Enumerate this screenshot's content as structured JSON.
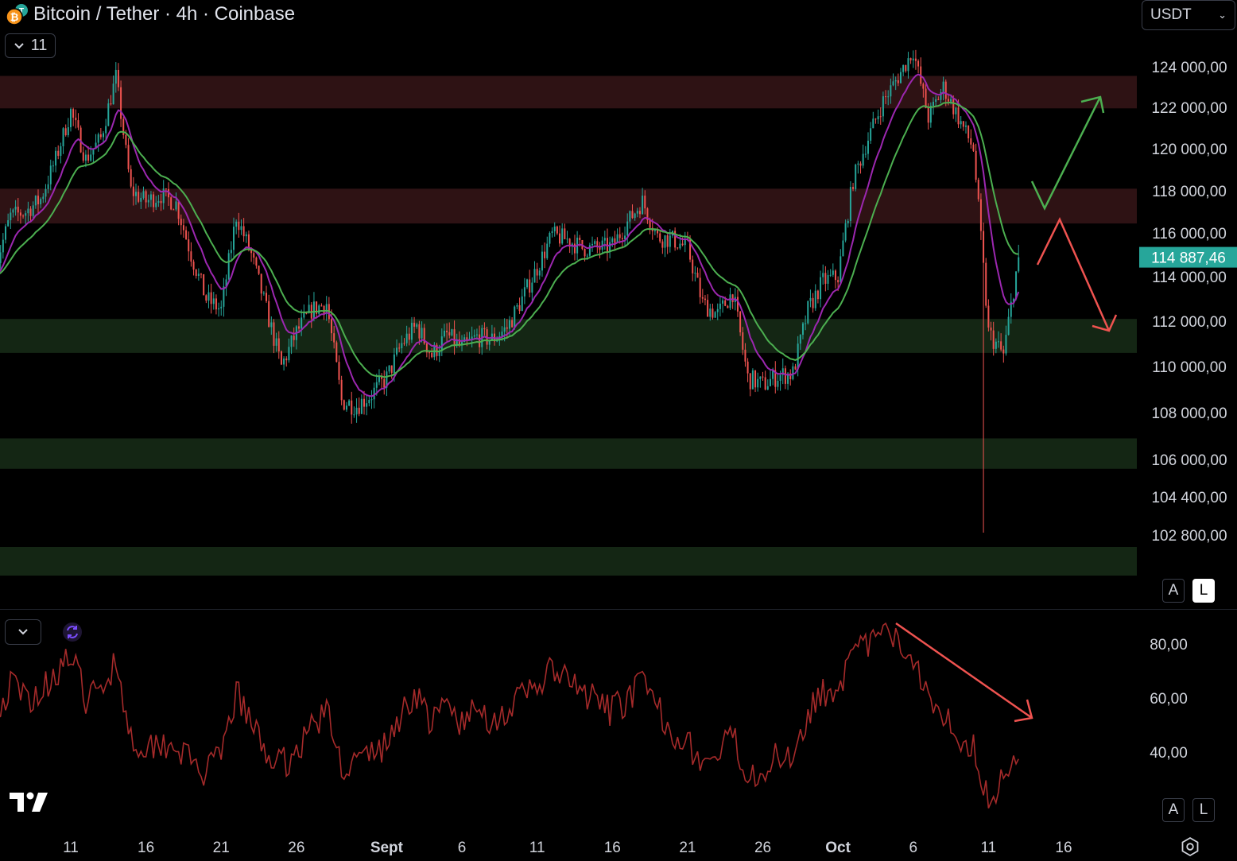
{
  "header": {
    "title": "Bitcoin / Tether · 4h · Coinbase",
    "indicator_count": "11",
    "currency": "USDT"
  },
  "colors": {
    "bullish": "#26a69a",
    "bearish": "#ef5350",
    "ema_fast": "#9c27b0",
    "ema_slow": "#4caf50",
    "resistance_zone": "#2e1214",
    "support_zone": "#142614",
    "rsi_line": "#a52a2a",
    "last_price_bg": "#26a69a"
  },
  "main_scale": {
    "auto_label": "A",
    "log_label": "L"
  },
  "osc_scale": {
    "auto_label": "A",
    "log_label": "L"
  },
  "chart_data": [
    {
      "type": "candlestick",
      "title": "Bitcoin / Tether · 4h · Coinbase",
      "interval": "4h",
      "y_axis": {
        "ticks": [
          124000,
          122000,
          120000,
          118000,
          116000,
          114000,
          112000,
          110000,
          108000,
          106000,
          104400,
          102800
        ],
        "tick_labels": [
          "124 000,00",
          "122 000,00",
          "120 000,00",
          "118 000,00",
          "116 000,00",
          "114 000,00",
          "112 000,00",
          "110 000,00",
          "108 000,00",
          "106 000,00",
          "104 400,00",
          "102 800,00"
        ],
        "scale": "log-like (price)",
        "range": [
          101100,
          125500
        ]
      },
      "x_axis": {
        "tick_labels": [
          "11",
          "16",
          "21",
          "26",
          "Sept",
          "6",
          "11",
          "16",
          "21",
          "26",
          "Oct",
          "6",
          "11",
          "16"
        ],
        "tick_dates": [
          "Aug 11",
          "Aug 16",
          "Aug 21",
          "Aug 26",
          "Sep 1",
          "Sep 6",
          "Sep 11",
          "Sep 16",
          "Sep 21",
          "Sep 26",
          "Oct 1",
          "Oct 6",
          "Oct 11",
          "Oct 16"
        ],
        "range": [
          "Aug 6",
          "Oct 18"
        ]
      },
      "last_price": 114887.46,
      "last_price_label": "114 887,46",
      "price_path": [
        {
          "date": "Aug 6",
          "price": 114500
        },
        {
          "date": "Aug 7",
          "price": 116800
        },
        {
          "date": "Aug 8",
          "price": 117000
        },
        {
          "date": "Aug 9",
          "price": 117600
        },
        {
          "date": "Aug 10",
          "price": 119500
        },
        {
          "date": "Aug 11",
          "price": 121800
        },
        {
          "date": "Aug 12",
          "price": 119500
        },
        {
          "date": "Aug 13",
          "price": 120500
        },
        {
          "date": "Aug 14",
          "price": 123500
        },
        {
          "date": "Aug 15",
          "price": 118000
        },
        {
          "date": "Aug 16",
          "price": 117500
        },
        {
          "date": "Aug 17",
          "price": 117800
        },
        {
          "date": "Aug 18",
          "price": 117400
        },
        {
          "date": "Aug 19",
          "price": 115000
        },
        {
          "date": "Aug 20",
          "price": 113000
        },
        {
          "date": "Aug 21",
          "price": 112500
        },
        {
          "date": "Aug 22",
          "price": 116800
        },
        {
          "date": "Aug 23",
          "price": 115000
        },
        {
          "date": "Aug 24",
          "price": 112500
        },
        {
          "date": "Aug 25",
          "price": 110000
        },
        {
          "date": "Aug 26",
          "price": 111500
        },
        {
          "date": "Aug 27",
          "price": 112500
        },
        {
          "date": "Aug 28",
          "price": 112800
        },
        {
          "date": "Aug 29",
          "price": 108500
        },
        {
          "date": "Aug 30",
          "price": 108300
        },
        {
          "date": "Aug 31",
          "price": 108800
        },
        {
          "date": "Sep 1",
          "price": 109500
        },
        {
          "date": "Sep 2",
          "price": 111000
        },
        {
          "date": "Sep 3",
          "price": 111800
        },
        {
          "date": "Sep 4",
          "price": 110500
        },
        {
          "date": "Sep 5",
          "price": 111400
        },
        {
          "date": "Sep 6",
          "price": 110800
        },
        {
          "date": "Sep 7",
          "price": 111300
        },
        {
          "date": "Sep 8",
          "price": 111200
        },
        {
          "date": "Sep 9",
          "price": 111700
        },
        {
          "date": "Sep 10",
          "price": 113000
        },
        {
          "date": "Sep 11",
          "price": 114400
        },
        {
          "date": "Sep 12",
          "price": 115900
        },
        {
          "date": "Sep 13",
          "price": 115700
        },
        {
          "date": "Sep 14",
          "price": 115300
        },
        {
          "date": "Sep 15",
          "price": 115300
        },
        {
          "date": "Sep 16",
          "price": 115400
        },
        {
          "date": "Sep 17",
          "price": 116500
        },
        {
          "date": "Sep 18",
          "price": 117500
        },
        {
          "date": "Sep 19",
          "price": 115800
        },
        {
          "date": "Sep 20",
          "price": 115700
        },
        {
          "date": "Sep 21",
          "price": 115300
        },
        {
          "date": "Sep 22",
          "price": 112800
        },
        {
          "date": "Sep 23",
          "price": 112300
        },
        {
          "date": "Sep 24",
          "price": 113300
        },
        {
          "date": "Sep 25",
          "price": 109500
        },
        {
          "date": "Sep 26",
          "price": 109200
        },
        {
          "date": "Sep 27",
          "price": 109600
        },
        {
          "date": "Sep 28",
          "price": 109700
        },
        {
          "date": "Sep 29",
          "price": 112500
        },
        {
          "date": "Sep 30",
          "price": 113800
        },
        {
          "date": "Oct 1",
          "price": 114000
        },
        {
          "date": "Oct 2",
          "price": 118500
        },
        {
          "date": "Oct 3",
          "price": 120500
        },
        {
          "date": "Oct 4",
          "price": 122300
        },
        {
          "date": "Oct 5",
          "price": 123500
        },
        {
          "date": "Oct 6",
          "price": 124800
        },
        {
          "date": "Oct 7",
          "price": 121500
        },
        {
          "date": "Oct 8",
          "price": 123000
        },
        {
          "date": "Oct 9",
          "price": 121500
        },
        {
          "date": "Oct 10",
          "price": 120000
        },
        {
          "date": "Oct 11",
          "price": 111500
        },
        {
          "date": "Oct 12",
          "price": 110500
        },
        {
          "date": "Oct 13",
          "price": 114887.46
        }
      ],
      "wick_low": {
        "date": "Oct 10",
        "price": 102900
      },
      "zones": [
        {
          "kind": "resistance",
          "from": 121950,
          "to": 123550
        },
        {
          "kind": "resistance",
          "from": 116450,
          "to": 118100
        },
        {
          "kind": "support",
          "from": 110600,
          "to": 112100
        },
        {
          "kind": "support",
          "from": 105600,
          "to": 106900
        },
        {
          "kind": "support",
          "from": 101100,
          "to": 102300
        }
      ],
      "annotations": [
        {
          "kind": "bullish-path-arrow",
          "color": "#4caf50"
        },
        {
          "kind": "bearish-path-arrow",
          "color": "#ef5350"
        }
      ]
    },
    {
      "type": "line",
      "indicator": "oscillator",
      "y_axis": {
        "ticks": [
          80,
          60,
          40
        ],
        "tick_labels": [
          "80,00",
          "60,00",
          "40,00"
        ],
        "range": [
          17,
          92
        ]
      },
      "series": [
        {
          "values": [
            {
              "date": "Aug 6",
              "value": 50
            },
            {
              "date": "Aug 7",
              "value": 65
            },
            {
              "date": "Aug 8",
              "value": 60
            },
            {
              "date": "Aug 9",
              "value": 62
            },
            {
              "date": "Aug 10",
              "value": 70
            },
            {
              "date": "Aug 11",
              "value": 75
            },
            {
              "date": "Aug 12",
              "value": 60
            },
            {
              "date": "Aug 13",
              "value": 62
            },
            {
              "date": "Aug 14",
              "value": 75
            },
            {
              "date": "Aug 15",
              "value": 45
            },
            {
              "date": "Aug 16",
              "value": 42
            },
            {
              "date": "Aug 17",
              "value": 44
            },
            {
              "date": "Aug 18",
              "value": 43
            },
            {
              "date": "Aug 19",
              "value": 36
            },
            {
              "date": "Aug 20",
              "value": 32
            },
            {
              "date": "Aug 21",
              "value": 38
            },
            {
              "date": "Aug 22",
              "value": 62
            },
            {
              "date": "Aug 23",
              "value": 50
            },
            {
              "date": "Aug 24",
              "value": 40
            },
            {
              "date": "Aug 25",
              "value": 35
            },
            {
              "date": "Aug 26",
              "value": 40
            },
            {
              "date": "Aug 27",
              "value": 50
            },
            {
              "date": "Aug 28",
              "value": 55
            },
            {
              "date": "Aug 29",
              "value": 35
            },
            {
              "date": "Aug 30",
              "value": 36
            },
            {
              "date": "Aug 31",
              "value": 40
            },
            {
              "date": "Sep 1",
              "value": 42
            },
            {
              "date": "Sep 2",
              "value": 55
            },
            {
              "date": "Sep 3",
              "value": 62
            },
            {
              "date": "Sep 4",
              "value": 50
            },
            {
              "date": "Sep 5",
              "value": 58
            },
            {
              "date": "Sep 6",
              "value": 50
            },
            {
              "date": "Sep 7",
              "value": 56
            },
            {
              "date": "Sep 8",
              "value": 52
            },
            {
              "date": "Sep 9",
              "value": 55
            },
            {
              "date": "Sep 10",
              "value": 60
            },
            {
              "date": "Sep 11",
              "value": 65
            },
            {
              "date": "Sep 12",
              "value": 70
            },
            {
              "date": "Sep 13",
              "value": 66
            },
            {
              "date": "Sep 14",
              "value": 62
            },
            {
              "date": "Sep 15",
              "value": 58
            },
            {
              "date": "Sep 16",
              "value": 55
            },
            {
              "date": "Sep 17",
              "value": 60
            },
            {
              "date": "Sep 18",
              "value": 65
            },
            {
              "date": "Sep 19",
              "value": 56
            },
            {
              "date": "Sep 20",
              "value": 48
            },
            {
              "date": "Sep 21",
              "value": 44
            },
            {
              "date": "Sep 22",
              "value": 35
            },
            {
              "date": "Sep 23",
              "value": 38
            },
            {
              "date": "Sep 24",
              "value": 46
            },
            {
              "date": "Sep 25",
              "value": 32
            },
            {
              "date": "Sep 26",
              "value": 34
            },
            {
              "date": "Sep 27",
              "value": 38
            },
            {
              "date": "Sep 28",
              "value": 40
            },
            {
              "date": "Sep 29",
              "value": 55
            },
            {
              "date": "Sep 30",
              "value": 62
            },
            {
              "date": "Oct 1",
              "value": 65
            },
            {
              "date": "Oct 2",
              "value": 75
            },
            {
              "date": "Oct 3",
              "value": 80
            },
            {
              "date": "Oct 4",
              "value": 84
            },
            {
              "date": "Oct 5",
              "value": 80
            },
            {
              "date": "Oct 6",
              "value": 76
            },
            {
              "date": "Oct 7",
              "value": 62
            },
            {
              "date": "Oct 8",
              "value": 55
            },
            {
              "date": "Oct 9",
              "value": 46
            },
            {
              "date": "Oct 10",
              "value": 42
            },
            {
              "date": "Oct 11",
              "value": 22
            },
            {
              "date": "Oct 12",
              "value": 30
            },
            {
              "date": "Oct 13",
              "value": 43
            }
          ]
        }
      ],
      "annotations": [
        {
          "kind": "divergence-arrow",
          "color": "#ef5350"
        }
      ]
    }
  ]
}
